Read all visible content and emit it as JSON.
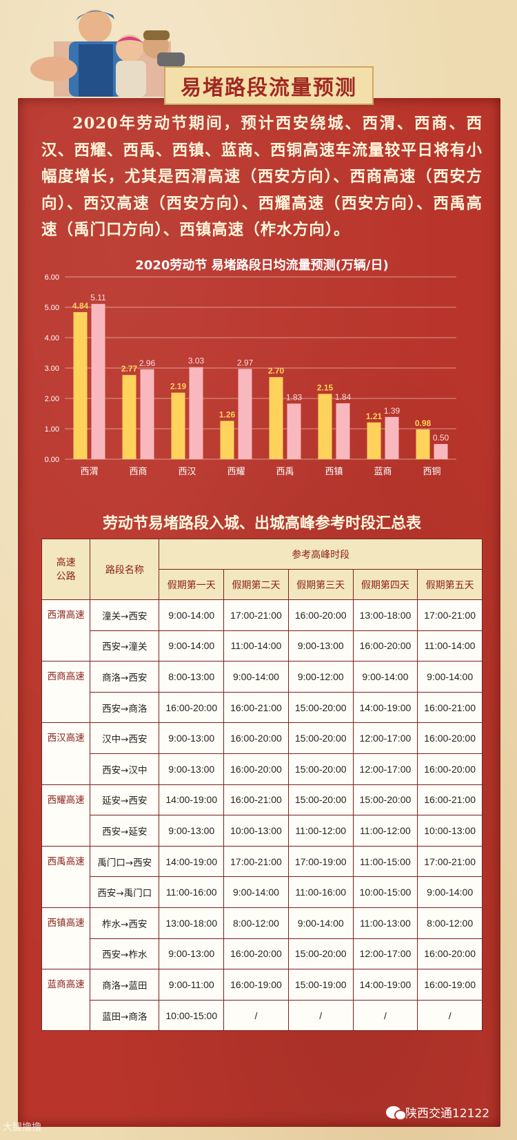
{
  "page_title": "易堵路段流量预测",
  "intro_text": "2020年劳动节期间，预计西安绕城、西渭、西商、西汉、西耀、西禹、西镇、蓝商、西铜高速车流量较平日将有小幅度增长，尤其是西渭高速（西安方向）、西商高速（西安方向）、西汉高速（西安方向）、西耀高速（西安方向）、西禹高速（禹门口方向）、西镇高速（柞水方向）。",
  "chart_data": {
    "type": "bar",
    "title": "2020劳动节 易堵路段日均流量预测(万辆/日)",
    "categories": [
      "西渭",
      "西商",
      "西汉",
      "西耀",
      "西禹",
      "西镇",
      "蓝商",
      "西铜"
    ],
    "series": [
      {
        "values": [
          4.84,
          2.77,
          2.19,
          1.26,
          2.7,
          2.15,
          1.21,
          0.98
        ],
        "color": "#ffd25c",
        "label_color": "#ffd25c"
      },
      {
        "values": [
          5.11,
          2.96,
          3.03,
          2.97,
          1.83,
          1.84,
          1.39,
          0.5
        ],
        "color": "#f8b8bd",
        "label_color": "#f6dde0"
      }
    ],
    "ylim": [
      0,
      6
    ],
    "yticks": [
      "0.00",
      "1.00",
      "2.00",
      "3.00",
      "4.00",
      "5.00",
      "6.00"
    ],
    "grid": true,
    "xlabel": "",
    "ylabel": ""
  },
  "table": {
    "title": "劳动节易堵路段入城、出城高峰参考时段汇总表",
    "col_highway": "高速公路",
    "col_road": "路段名称",
    "col_peak": "参考高峰时段",
    "days": [
      "假期第一天",
      "假期第二天",
      "假期第三天",
      "假期第四天",
      "假期第五天"
    ],
    "groups": [
      {
        "highway": "西渭高速",
        "rows": [
          {
            "road": "潼关→西安",
            "times": [
              "9:00-14:00",
              "17:00-21:00",
              "16:00-20:00",
              "13:00-18:00",
              "17:00-21:00"
            ]
          },
          {
            "road": "西安→潼关",
            "times": [
              "9:00-14:00",
              "11:00-14:00",
              "9:00-13:00",
              "16:00-20:00",
              "11:00-14:00"
            ]
          }
        ]
      },
      {
        "highway": "西商高速",
        "rows": [
          {
            "road": "商洛→西安",
            "times": [
              "8:00-13:00",
              "9:00-14:00",
              "9:00-12:00",
              "9:00-14:00",
              "9:00-14:00"
            ]
          },
          {
            "road": "西安→商洛",
            "times": [
              "16:00-20:00",
              "16:00-21:00",
              "15:00-20:00",
              "14:00-19:00",
              "16:00-21:00"
            ]
          }
        ]
      },
      {
        "highway": "西汉高速",
        "rows": [
          {
            "road": "汉中→西安",
            "times": [
              "9:00-13:00",
              "16:00-20:00",
              "15:00-20:00",
              "12:00-17:00",
              "16:00-20:00"
            ]
          },
          {
            "road": "西安→汉中",
            "times": [
              "9:00-13:00",
              "16:00-20:00",
              "15:00-20:00",
              "12:00-17:00",
              "16:00-20:00"
            ]
          }
        ]
      },
      {
        "highway": "西耀高速",
        "rows": [
          {
            "road": "延安→西安",
            "times": [
              "14:00-19:00",
              "16:00-21:00",
              "15:00-20:00",
              "15:00-20:00",
              "16:00-21:00"
            ]
          },
          {
            "road": "西安→延安",
            "times": [
              "9:00-13:00",
              "10:00-13:00",
              "11:00-12:00",
              "11:00-12:00",
              "10:00-13:00"
            ]
          }
        ]
      },
      {
        "highway": "西禹高速",
        "rows": [
          {
            "road": "禹门口→西安",
            "times": [
              "14:00-19:00",
              "17:00-21:00",
              "17:00-19:00",
              "11:00-15:00",
              "17:00-21:00"
            ]
          },
          {
            "road": "西安→禹门口",
            "times": [
              "11:00-16:00",
              "9:00-14:00",
              "11:00-16:00",
              "10:00-15:00",
              "9:00-14:00"
            ]
          }
        ]
      },
      {
        "highway": "西镇高速",
        "rows": [
          {
            "road": "柞水→西安",
            "times": [
              "13:00-18:00",
              "8:00-12:00",
              "9:00-14:00",
              "11:00-13:00",
              "8:00-12:00"
            ]
          },
          {
            "road": "西安→柞水",
            "times": [
              "9:00-13:00",
              "16:00-20:00",
              "15:00-20:00",
              "12:00-17:00",
              "16:00-20:00"
            ]
          }
        ]
      },
      {
        "highway": "蓝商高速",
        "rows": [
          {
            "road": "商洛→蓝田",
            "times": [
              "9:00-11:00",
              "16:00-19:00",
              "15:00-19:00",
              "14:00-19:00",
              "16:00-19:00"
            ]
          },
          {
            "road": "蓝田→商洛",
            "times": [
              "10:00-15:00",
              "/",
              "/",
              "/",
              "/"
            ]
          }
        ]
      }
    ]
  },
  "watermark_left": "大腿撸撸",
  "watermark_right": "陕西交通12122"
}
